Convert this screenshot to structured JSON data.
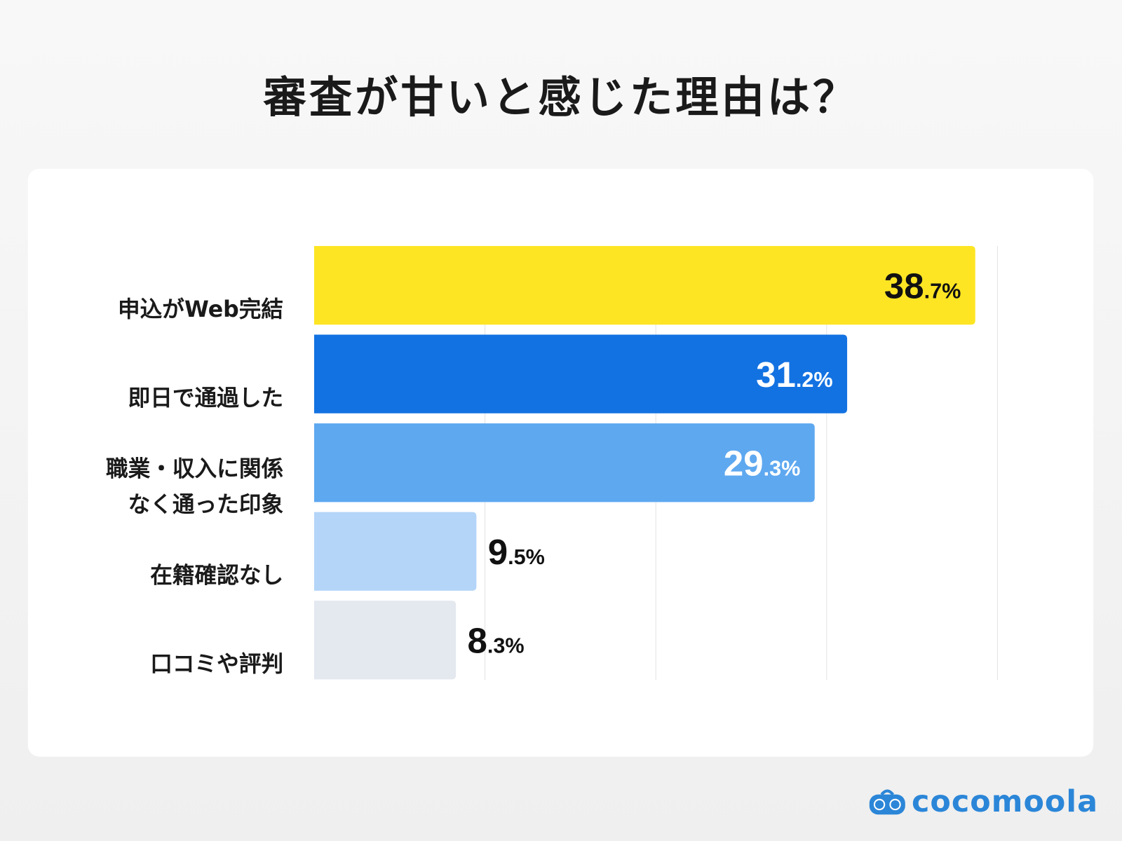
{
  "chart_data": {
    "type": "bar",
    "orientation": "horizontal",
    "title": "審査が甘いと感じた理由は？",
    "categories": [
      "申込がWeb完結",
      "即日で通過した",
      "職業・収入に関係\nなく通った印象",
      "在籍確認なし",
      "口コミや評判"
    ],
    "values": [
      38.7,
      31.2,
      29.3,
      9.5,
      8.3
    ],
    "unit": "%",
    "data_labels": [
      "38.7%",
      "31.2%",
      "29.3%",
      "9.5%",
      "8.3%"
    ],
    "bar_colors": [
      "#fde523",
      "#1372e2",
      "#5ea8f0",
      "#b4d5f8",
      "#e4e8ef"
    ],
    "label_colors": [
      "#111111",
      "#ffffff",
      "#ffffff",
      "#111111",
      "#111111"
    ],
    "xlim": [
      0,
      40
    ],
    "grid": true,
    "grid_step": 10,
    "xlabel": "",
    "ylabel": ""
  },
  "brand": {
    "name": "cocomoola",
    "color": "#2b86d8"
  }
}
